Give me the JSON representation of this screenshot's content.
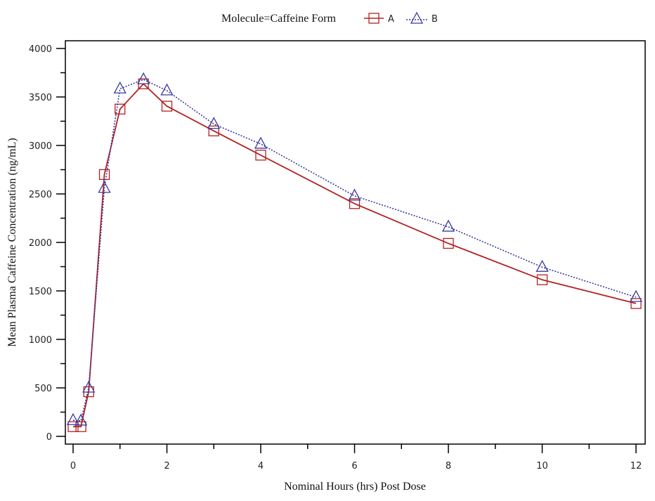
{
  "legend": {
    "title": "Molecule=Caffeine  Form",
    "entries": [
      {
        "label": "A",
        "marker": "square",
        "line": "solid",
        "color": "#b22222"
      },
      {
        "label": "B",
        "marker": "triangle",
        "line": "dotted",
        "color": "#3a3aa0"
      }
    ]
  },
  "chart_data": {
    "type": "line",
    "title": "",
    "xlabel": "Nominal Hours (hrs) Post Dose",
    "ylabel": "Mean Plasma Caffeine Concentration (ng/mL)",
    "xlim": [
      0,
      12
    ],
    "ylim": [
      0,
      4000
    ],
    "x_ticks": [
      0,
      2,
      4,
      6,
      8,
      10,
      12
    ],
    "x_minor_ticks": [
      1,
      3,
      5,
      7,
      9,
      11
    ],
    "y_ticks": [
      0,
      500,
      1000,
      1500,
      2000,
      2500,
      3000,
      3500,
      4000
    ],
    "grid": false,
    "legend_position": "top",
    "legend_title": "Molecule=Caffeine  Form",
    "x": [
      0,
      0.167,
      0.333,
      0.667,
      1,
      1.5,
      2,
      3,
      4,
      6,
      8,
      10,
      12
    ],
    "series": [
      {
        "name": "A",
        "color": "#b22222",
        "marker": "square",
        "line": "solid",
        "values": [
          100,
          100,
          460,
          2700,
          3375,
          3635,
          3405,
          3150,
          2900,
          2400,
          1990,
          1615,
          1370
        ]
      },
      {
        "name": "B",
        "color": "#3a3aa0",
        "marker": "triangle",
        "line": "dotted",
        "values": [
          165,
          160,
          500,
          2560,
          3585,
          3680,
          3565,
          3220,
          3015,
          2480,
          2160,
          1745,
          1435
        ]
      }
    ]
  }
}
